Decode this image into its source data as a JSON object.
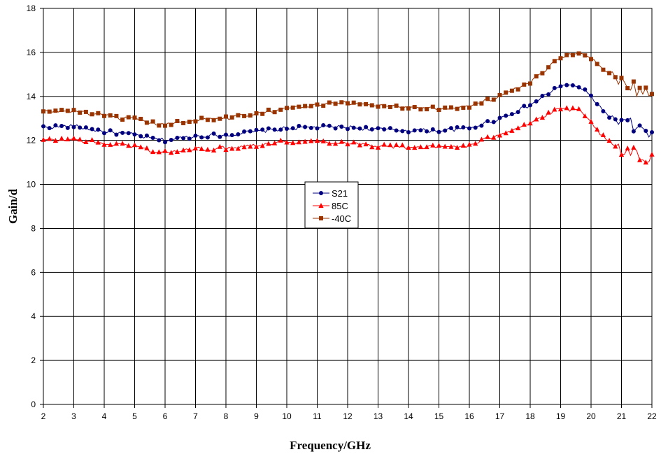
{
  "chart_data": {
    "type": "line",
    "title": "",
    "xlabel": "Frequency/GHz",
    "ylabel": "Gain/d",
    "xlim": [
      2,
      22
    ],
    "ylim": [
      0,
      18
    ],
    "x_ticks": [
      "2",
      "3",
      "4",
      "5",
      "6",
      "7",
      "8",
      "9",
      "10",
      "11",
      "12",
      "13",
      "14",
      "15",
      "16",
      "17",
      "18",
      "19",
      "20",
      "21",
      "22"
    ],
    "y_ticks": [
      "0",
      "2",
      "4",
      "6",
      "8",
      "10",
      "12",
      "14",
      "16",
      "18"
    ],
    "grid": true,
    "legend_position": "center",
    "series": [
      {
        "name": "S21",
        "color": "#00007f",
        "marker": "circle",
        "points": [
          [
            2,
            12.6
          ],
          [
            3,
            12.65
          ],
          [
            4,
            12.4
          ],
          [
            5,
            12.25
          ],
          [
            5.5,
            12.1
          ],
          [
            6,
            12.0
          ],
          [
            7,
            12.2
          ],
          [
            8,
            12.25
          ],
          [
            9,
            12.4
          ],
          [
            10,
            12.55
          ],
          [
            11,
            12.6
          ],
          [
            12,
            12.6
          ],
          [
            13,
            12.5
          ],
          [
            14,
            12.45
          ],
          [
            15,
            12.45
          ],
          [
            16,
            12.55
          ],
          [
            17,
            13.0
          ],
          [
            18,
            13.6
          ],
          [
            19,
            14.5
          ],
          [
            19.6,
            14.45
          ],
          [
            20,
            14.0
          ],
          [
            20.5,
            13.2
          ],
          [
            21,
            12.8
          ],
          [
            21.5,
            12.6
          ],
          [
            22,
            12.1
          ]
        ]
      },
      {
        "name": "85C",
        "color": "#ff0000",
        "marker": "triangle",
        "points": [
          [
            2,
            12.0
          ],
          [
            3,
            12.05
          ],
          [
            4,
            11.85
          ],
          [
            5,
            11.75
          ],
          [
            5.5,
            11.55
          ],
          [
            6,
            11.45
          ],
          [
            7,
            11.6
          ],
          [
            8,
            11.65
          ],
          [
            9,
            11.8
          ],
          [
            10,
            11.95
          ],
          [
            11,
            11.95
          ],
          [
            12,
            11.9
          ],
          [
            13,
            11.75
          ],
          [
            14,
            11.7
          ],
          [
            15,
            11.7
          ],
          [
            16,
            11.75
          ],
          [
            17,
            12.3
          ],
          [
            18,
            12.8
          ],
          [
            19,
            13.45
          ],
          [
            19.6,
            13.35
          ],
          [
            20,
            12.8
          ],
          [
            20.5,
            12.0
          ],
          [
            21,
            11.5
          ],
          [
            21.5,
            11.3
          ],
          [
            22,
            11.1
          ]
        ]
      },
      {
        "name": "-40C",
        "color": "#993300",
        "marker": "square",
        "points": [
          [
            2,
            13.3
          ],
          [
            3,
            13.35
          ],
          [
            4,
            13.1
          ],
          [
            5,
            12.95
          ],
          [
            5.5,
            12.8
          ],
          [
            6,
            12.7
          ],
          [
            7,
            12.95
          ],
          [
            8,
            13.0
          ],
          [
            9,
            13.25
          ],
          [
            10,
            13.45
          ],
          [
            11,
            13.6
          ],
          [
            12,
            13.7
          ],
          [
            13,
            13.6
          ],
          [
            14,
            13.5
          ],
          [
            15,
            13.45
          ],
          [
            16,
            13.55
          ],
          [
            17,
            14.0
          ],
          [
            18,
            14.6
          ],
          [
            19,
            15.8
          ],
          [
            19.5,
            16.0
          ],
          [
            20,
            15.7
          ],
          [
            20.5,
            15.2
          ],
          [
            21,
            14.8
          ],
          [
            21.5,
            14.3
          ],
          [
            22,
            14.1
          ]
        ]
      }
    ]
  }
}
